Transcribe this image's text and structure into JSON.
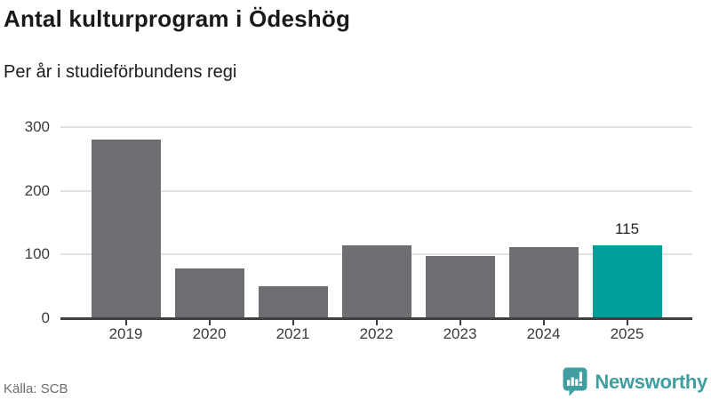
{
  "header": {
    "title": "Antal kulturprogram i Ödeshög",
    "subtitle": "Per år i studieförbundens regi"
  },
  "footer": {
    "source": "Källa: SCB",
    "brand": "Newsworthy",
    "brand_icon": "newsworthy-badge-icon"
  },
  "colors": {
    "bar": "#6e6e72",
    "highlight": "#009e98",
    "grid": "#e3e3e3",
    "axis": "#3f3f3f",
    "logo": "#3f9fa0"
  },
  "chart_data": {
    "type": "bar",
    "title": "Antal kulturprogram i Ödeshög",
    "subtitle": "Per år i studieförbundens regi",
    "categories": [
      "2019",
      "2020",
      "2021",
      "2022",
      "2023",
      "2024",
      "2025"
    ],
    "values": [
      280,
      78,
      50,
      115,
      98,
      111,
      115
    ],
    "highlighted_category": "2025",
    "annotations": [
      {
        "category": "2025",
        "text": "115"
      }
    ],
    "xlabel": "",
    "ylabel": "",
    "ylim": [
      0,
      300
    ],
    "yticks": [
      0,
      100,
      200,
      300
    ],
    "grid": "horizontal",
    "legend": "none",
    "source": "Källa: SCB"
  }
}
